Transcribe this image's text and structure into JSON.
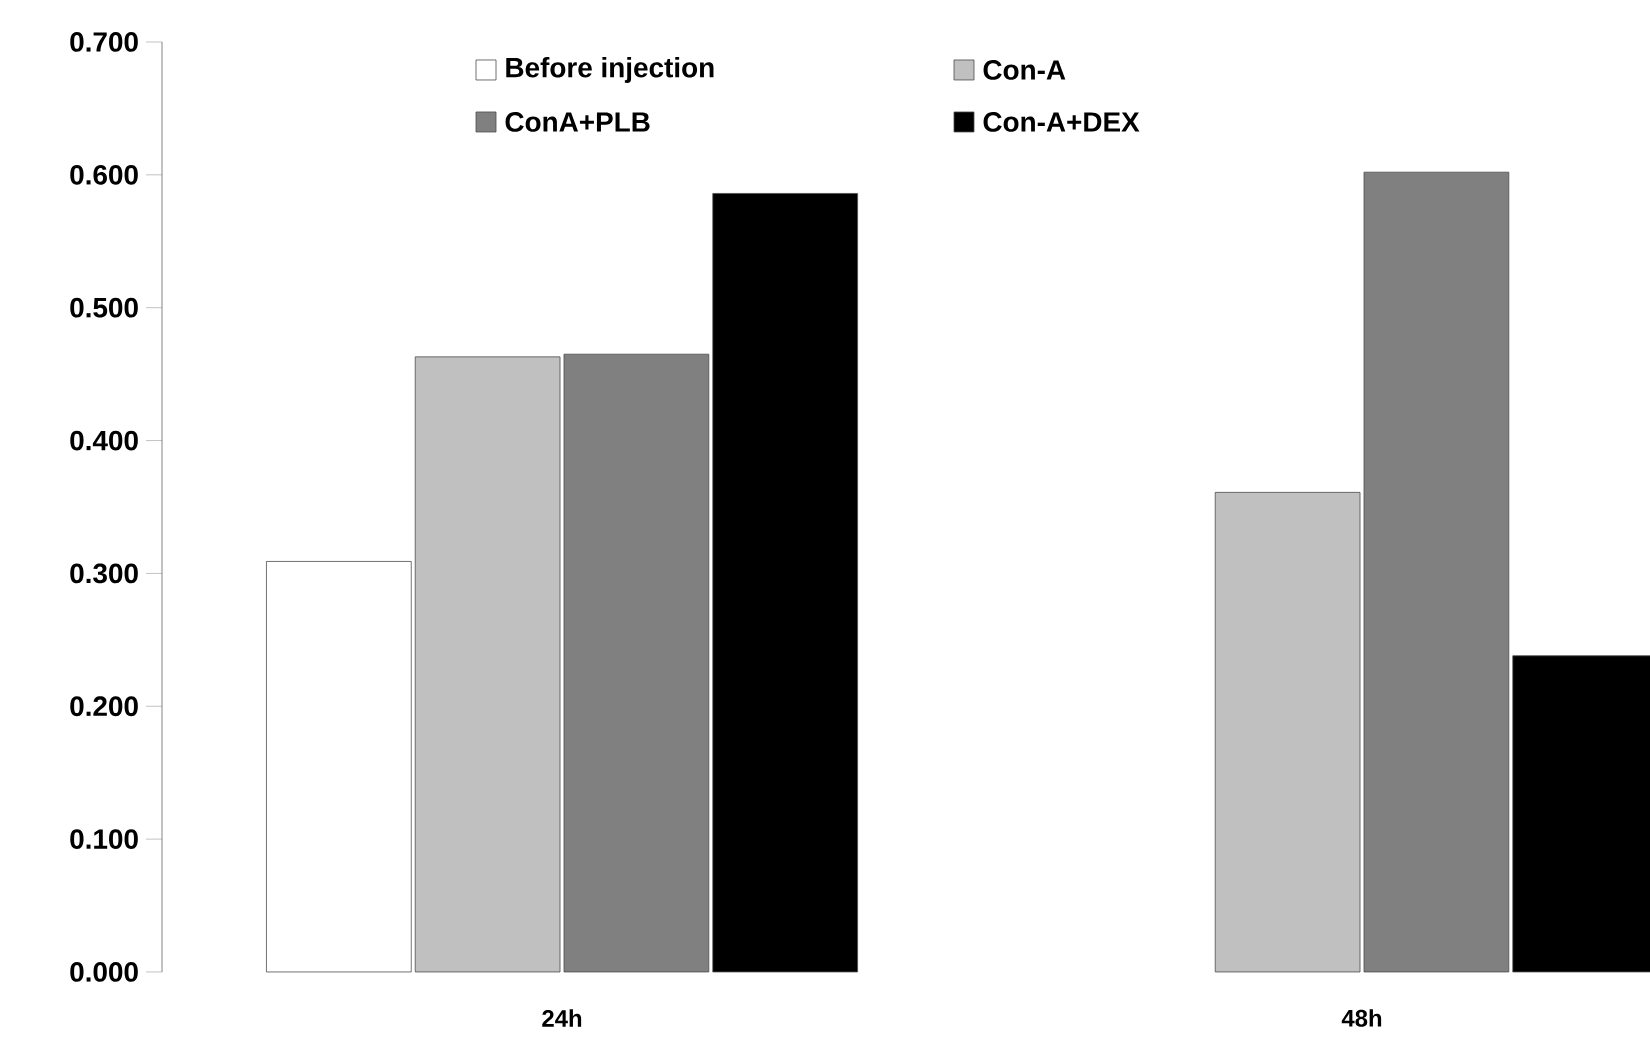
{
  "chart_data": {
    "type": "bar",
    "categories": [
      "24h",
      "48h"
    ],
    "series": [
      {
        "name": "Before injection",
        "color": "#ffffff",
        "values": [
          0.309,
          null
        ]
      },
      {
        "name": "Con-A",
        "color": "#c0c0c0",
        "values": [
          0.463,
          0.361
        ]
      },
      {
        "name": "ConA+PLB",
        "color": "#808080",
        "values": [
          0.465,
          0.602
        ]
      },
      {
        "name": "Con-A+DEX",
        "color": "#000000",
        "values": [
          0.586,
          0.238
        ]
      }
    ],
    "ylim": [
      0,
      0.7
    ],
    "yticks": [
      {
        "value": 0,
        "label": "0.000"
      },
      {
        "value": 0.1,
        "label": "0.100"
      },
      {
        "value": 0.2,
        "label": "0.200"
      },
      {
        "value": 0.3,
        "label": "0.300"
      },
      {
        "value": 0.4,
        "label": "0.400"
      },
      {
        "value": 0.5,
        "label": "0.500"
      },
      {
        "value": 0.6,
        "label": "0.600"
      },
      {
        "value": 0.7,
        "label": "0.700"
      }
    ],
    "grid": false,
    "legend": "top"
  }
}
